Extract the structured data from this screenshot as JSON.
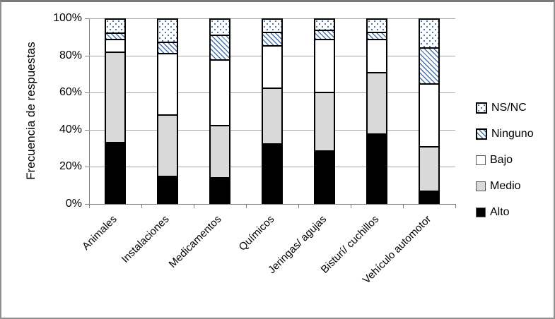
{
  "chart_data": {
    "type": "bar",
    "subtype": "stacked-100-percent",
    "title": "",
    "ylabel": "Frecuencia de respuestas",
    "xlabel": "",
    "ylim": [
      0,
      100
    ],
    "ytick_labels": [
      "0%",
      "20%",
      "40%",
      "60%",
      "80%",
      "100%"
    ],
    "grid": true,
    "legend_position": "right",
    "categories": [
      "Animales",
      "Instalaciones",
      "Medicamentos",
      "Químicos",
      "Jeringas/ agujas",
      "Bisturí/ cuchillos",
      "Vehículo automotor"
    ],
    "series": [
      {
        "name": "Alto",
        "pattern": "solid-black",
        "values": [
          33,
          15,
          14,
          32.5,
          28.5,
          38,
          6.5
        ]
      },
      {
        "name": "Medio",
        "pattern": "solid-light-gray",
        "values": [
          49.5,
          33.5,
          28.5,
          30.5,
          32,
          33.5,
          24.5
        ]
      },
      {
        "name": "Bajo",
        "pattern": "solid-white",
        "values": [
          7,
          33.5,
          36,
          23,
          29,
          18,
          34.5
        ]
      },
      {
        "name": "Ninguno",
        "pattern": "blue-diagonal-hatch",
        "values": [
          3.5,
          6,
          13.5,
          7.5,
          5,
          4,
          19.5
        ]
      },
      {
        "name": "NS/NC",
        "pattern": "blue-dots",
        "values": [
          7,
          12,
          8,
          6.5,
          5.5,
          6.5,
          15
        ]
      }
    ],
    "legend": [
      "NS/NC",
      "Ninguno",
      "Bajo",
      "Medio",
      "Alto"
    ],
    "colors": {
      "alto": "#000000",
      "medio": "#d9d9d9",
      "bajo": "#ffffff",
      "pattern_blue": "#4472a8",
      "segment_border": "#000000",
      "gridline": "#a6a6a6",
      "axis": "#808080",
      "frame_border": "#8f8f8f",
      "background": "#ffffff"
    }
  }
}
